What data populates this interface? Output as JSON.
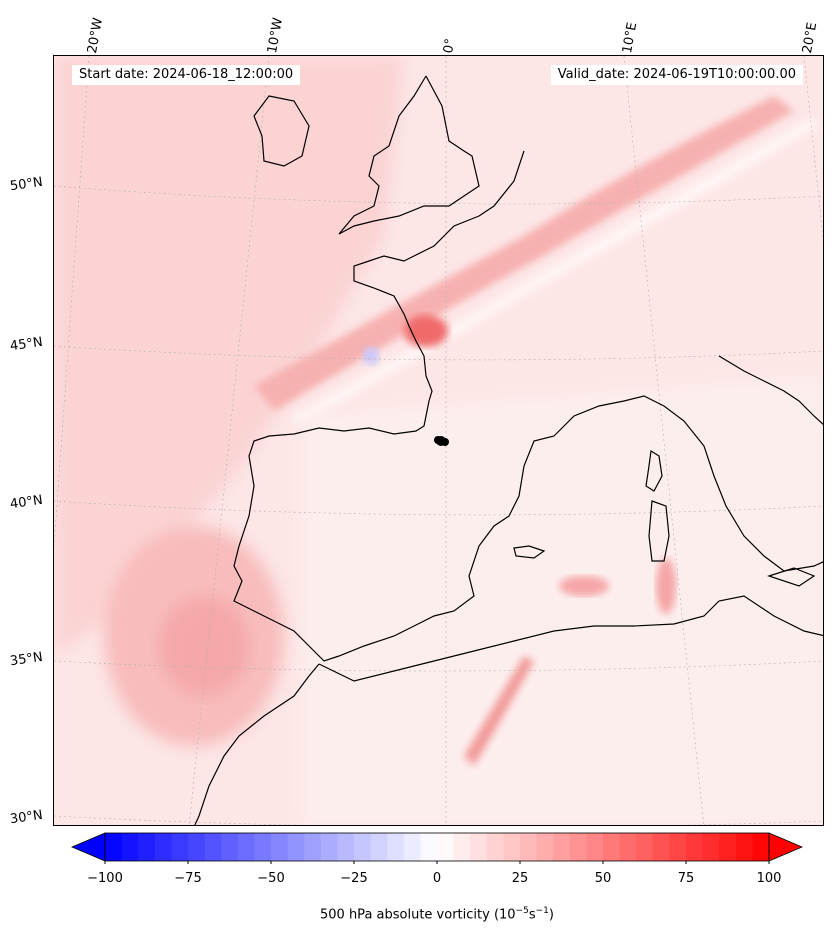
{
  "map": {
    "start_date": "Start date: 2024-06-18_12:00:00",
    "valid_date": "Valid_date: 2024-06-19T10:00:00.00",
    "lon_labels": [
      "20°W",
      "10°W",
      "0°",
      "10°E",
      "20°E"
    ],
    "lat_labels": [
      "50°N",
      "45°N",
      "40°N",
      "35°N",
      "30°N"
    ]
  },
  "colorbar": {
    "ticks": [
      "−100",
      "−75",
      "−50",
      "−25",
      "0",
      "25",
      "50",
      "75",
      "100"
    ],
    "title_main": "500 hPa absolute vorticity (10",
    "title_exp1": "−5",
    "title_mid": "s",
    "title_exp2": "−1",
    "title_end": ")",
    "min": -100,
    "max": 100,
    "colors": {
      "negative": "#0000ff",
      "zero": "#ffffff",
      "positive": "#ff0000"
    }
  }
}
